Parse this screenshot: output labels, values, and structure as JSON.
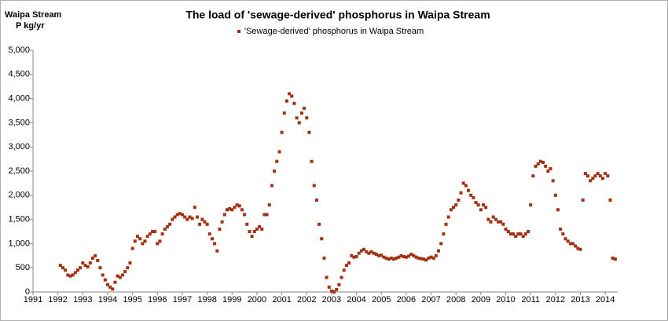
{
  "chart_data": {
    "type": "scatter",
    "title": "The load of 'sewage-derived'  phosphorus in Waipa Stream",
    "y_label": "Waipa Stream",
    "y_label_unit": "P  kg/yr",
    "xlim": [
      1991,
      2014.5
    ],
    "xticks": [
      1991,
      1992,
      1993,
      1994,
      1995,
      1996,
      1997,
      1998,
      1999,
      2000,
      2001,
      2002,
      2003,
      2004,
      2005,
      2006,
      2007,
      2008,
      2009,
      2010,
      2011,
      2012,
      2013,
      2014
    ],
    "ylim": [
      0,
      5000
    ],
    "yticks": [
      0,
      500,
      {
        "value": 1000,
        "label": "1,000"
      },
      {
        "value": 1500,
        "label": "1,500"
      },
      {
        "value": 2000,
        "label": "2,000"
      },
      {
        "value": 2500,
        "label": "2,500"
      },
      {
        "value": 3000,
        "label": "3,000"
      },
      {
        "value": 3500,
        "label": "3,500"
      },
      {
        "value": 4000,
        "label": "4,000"
      },
      {
        "value": 4500,
        "label": "4,500"
      },
      {
        "value": 5000,
        "label": "5,000"
      }
    ],
    "grid": false,
    "legend": "top",
    "series": [
      {
        "name": "'Sewage-derived' phosphorus in Waipa Stream",
        "color": "#a3300f",
        "x": [
          1992.1,
          1992.2,
          1992.3,
          1992.4,
          1992.5,
          1992.6,
          1992.7,
          1992.8,
          1992.9,
          1993.0,
          1993.1,
          1993.2,
          1993.3,
          1993.4,
          1993.5,
          1993.6,
          1993.7,
          1993.8,
          1993.9,
          1994.0,
          1994.1,
          1994.2,
          1994.3,
          1994.4,
          1994.5,
          1994.6,
          1994.7,
          1994.8,
          1994.9,
          1995.0,
          1995.1,
          1995.2,
          1995.3,
          1995.4,
          1995.5,
          1995.6,
          1995.7,
          1995.8,
          1995.9,
          1996.0,
          1996.1,
          1996.2,
          1996.3,
          1996.4,
          1996.5,
          1996.6,
          1996.7,
          1996.8,
          1996.9,
          1997.0,
          1997.1,
          1997.2,
          1997.3,
          1997.4,
          1997.5,
          1997.6,
          1997.7,
          1997.8,
          1997.9,
          1998.0,
          1998.1,
          1998.2,
          1998.3,
          1998.4,
          1998.5,
          1998.6,
          1998.7,
          1998.8,
          1998.9,
          1999.0,
          1999.1,
          1999.2,
          1999.3,
          1999.4,
          1999.5,
          1999.6,
          1999.7,
          1999.8,
          1999.9,
          2000.0,
          2000.1,
          2000.2,
          2000.3,
          2000.4,
          2000.5,
          2000.6,
          2000.7,
          2000.8,
          2000.9,
          2001.0,
          2001.1,
          2001.2,
          2001.3,
          2001.4,
          2001.5,
          2001.6,
          2001.7,
          2001.8,
          2001.9,
          2002.0,
          2002.1,
          2002.2,
          2002.3,
          2002.4,
          2002.5,
          2002.6,
          2002.7,
          2002.8,
          2002.9,
          2003.0,
          2003.1,
          2003.2,
          2003.3,
          2003.4,
          2003.5,
          2003.6,
          2003.7,
          2003.8,
          2003.9,
          2004.0,
          2004.1,
          2004.2,
          2004.3,
          2004.4,
          2004.5,
          2004.6,
          2004.7,
          2004.8,
          2004.9,
          2005.0,
          2005.1,
          2005.2,
          2005.3,
          2005.4,
          2005.5,
          2005.6,
          2005.7,
          2005.8,
          2005.9,
          2006.0,
          2006.1,
          2006.2,
          2006.3,
          2006.4,
          2006.5,
          2006.6,
          2006.7,
          2006.8,
          2006.9,
          2007.0,
          2007.1,
          2007.2,
          2007.3,
          2007.4,
          2007.5,
          2007.6,
          2007.7,
          2007.8,
          2007.9,
          2008.0,
          2008.1,
          2008.2,
          2008.3,
          2008.4,
          2008.5,
          2008.6,
          2008.7,
          2008.8,
          2008.9,
          2009.0,
          2009.1,
          2009.2,
          2009.3,
          2009.4,
          2009.5,
          2009.6,
          2009.7,
          2009.8,
          2009.9,
          2010.0,
          2010.1,
          2010.2,
          2010.3,
          2010.4,
          2010.5,
          2010.6,
          2010.7,
          2010.8,
          2010.9,
          2011.0,
          2011.1,
          2011.2,
          2011.3,
          2011.4,
          2011.5,
          2011.6,
          2011.7,
          2011.8,
          2011.9,
          2012.0,
          2012.1,
          2012.2,
          2012.3,
          2012.4,
          2012.5,
          2012.6,
          2012.7,
          2012.8,
          2012.9,
          2013.0,
          2013.1,
          2013.2,
          2013.3,
          2013.4,
          2013.5,
          2013.6,
          2013.7,
          2013.8,
          2013.9,
          2014.0,
          2014.1,
          2014.2,
          2014.3,
          2014.4
        ],
        "values": [
          550,
          500,
          450,
          350,
          330,
          350,
          400,
          450,
          500,
          600,
          550,
          520,
          600,
          700,
          750,
          650,
          500,
          350,
          250,
          150,
          100,
          60,
          200,
          330,
          300,
          350,
          420,
          500,
          600,
          900,
          1050,
          1150,
          1100,
          1000,
          1050,
          1150,
          1200,
          1250,
          1250,
          1000,
          1050,
          1200,
          1300,
          1350,
          1400,
          1500,
          1550,
          1600,
          1620,
          1600,
          1550,
          1500,
          1550,
          1520,
          1750,
          1550,
          1400,
          1500,
          1450,
          1400,
          1200,
          1100,
          1000,
          850,
          1300,
          1450,
          1600,
          1700,
          1720,
          1700,
          1750,
          1800,
          1780,
          1700,
          1600,
          1400,
          1250,
          1150,
          1250,
          1300,
          1350,
          1300,
          1600,
          1600,
          1800,
          2200,
          2500,
          2700,
          2900,
          3300,
          3700,
          3950,
          4100,
          4050,
          3900,
          3600,
          3500,
          3700,
          3800,
          3600,
          3300,
          2700,
          2200,
          1900,
          1400,
          1100,
          700,
          300,
          100,
          20,
          0,
          50,
          150,
          300,
          450,
          550,
          600,
          750,
          720,
          730,
          800,
          850,
          880,
          830,
          800,
          830,
          800,
          780,
          750,
          760,
          720,
          700,
          680,
          700,
          680,
          700,
          720,
          750,
          730,
          720,
          740,
          780,
          750,
          720,
          700,
          690,
          680,
          660,
          700,
          720,
          700,
          750,
          850,
          1000,
          1200,
          1400,
          1550,
          1700,
          1750,
          1800,
          1900,
          2050,
          2250,
          2200,
          2100,
          2000,
          1950,
          1850,
          1800,
          1700,
          1800,
          1750,
          1500,
          1450,
          1550,
          1500,
          1450,
          1450,
          1400,
          1300,
          1250,
          1200,
          1200,
          1150,
          1200,
          1200,
          1150,
          1200,
          1250,
          1800,
          2400,
          2600,
          2650,
          2700,
          2680,
          2600,
          2500,
          2550,
          2300,
          2000,
          1700,
          1300,
          1200,
          1100,
          1050,
          1000,
          1000,
          950,
          900,
          880,
          1900,
          2450,
          2400,
          2300,
          2350,
          2400,
          2450,
          2400,
          2350,
          2450,
          2400,
          1900,
          700,
          680
        ]
      }
    ]
  }
}
